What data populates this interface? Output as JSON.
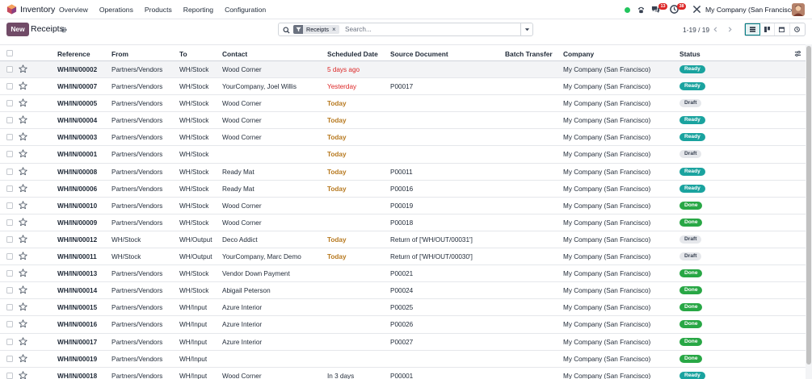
{
  "app": {
    "name": "Inventory",
    "icon": "inventory-app-icon"
  },
  "menu": [
    "Overview",
    "Operations",
    "Products",
    "Reporting",
    "Configuration"
  ],
  "systray": {
    "status_color": "#22c55e",
    "messages_count": "13",
    "activities_count": "38",
    "company": "My Company (San Francisco)"
  },
  "controls": {
    "new_label": "New",
    "breadcrumb": "Receipts",
    "facet_label": "Receipts",
    "search_placeholder": "Search...",
    "pager": "1-19 / 19"
  },
  "columns": [
    "Reference",
    "From",
    "To",
    "Contact",
    "Scheduled Date",
    "Source Document",
    "Batch Transfer",
    "Company",
    "Status"
  ],
  "rows": [
    {
      "reference": "WH/IN/00002",
      "from": "Partners/Vendors",
      "to": "WH/Stock",
      "contact": "Wood Corner",
      "date": "5 days ago",
      "date_style": "red",
      "source": "",
      "batch": "",
      "company": "My Company (San Francisco)",
      "status": "Ready"
    },
    {
      "reference": "WH/IN/00007",
      "from": "Partners/Vendors",
      "to": "WH/Stock",
      "contact": "YourCompany, Joel Willis",
      "date": "Yesterday",
      "date_style": "red",
      "source": "P00017",
      "batch": "",
      "company": "My Company (San Francisco)",
      "status": "Ready"
    },
    {
      "reference": "WH/IN/00005",
      "from": "Partners/Vendors",
      "to": "WH/Stock",
      "contact": "Wood Corner",
      "date": "Today",
      "date_style": "amber",
      "source": "",
      "batch": "",
      "company": "My Company (San Francisco)",
      "status": "Draft"
    },
    {
      "reference": "WH/IN/00004",
      "from": "Partners/Vendors",
      "to": "WH/Stock",
      "contact": "Wood Corner",
      "date": "Today",
      "date_style": "amber",
      "source": "",
      "batch": "",
      "company": "My Company (San Francisco)",
      "status": "Ready"
    },
    {
      "reference": "WH/IN/00003",
      "from": "Partners/Vendors",
      "to": "WH/Stock",
      "contact": "Wood Corner",
      "date": "Today",
      "date_style": "amber",
      "source": "",
      "batch": "",
      "company": "My Company (San Francisco)",
      "status": "Ready"
    },
    {
      "reference": "WH/IN/00001",
      "from": "Partners/Vendors",
      "to": "WH/Stock",
      "contact": "",
      "date": "Today",
      "date_style": "amber",
      "source": "",
      "batch": "",
      "company": "My Company (San Francisco)",
      "status": "Draft"
    },
    {
      "reference": "WH/IN/00008",
      "from": "Partners/Vendors",
      "to": "WH/Stock",
      "contact": "Ready Mat",
      "date": "Today",
      "date_style": "amber",
      "source": "P00011",
      "batch": "",
      "company": "My Company (San Francisco)",
      "status": "Ready"
    },
    {
      "reference": "WH/IN/00006",
      "from": "Partners/Vendors",
      "to": "WH/Stock",
      "contact": "Ready Mat",
      "date": "Today",
      "date_style": "amber",
      "source": "P00016",
      "batch": "",
      "company": "My Company (San Francisco)",
      "status": "Ready"
    },
    {
      "reference": "WH/IN/00010",
      "from": "Partners/Vendors",
      "to": "WH/Stock",
      "contact": "Wood Corner",
      "date": "",
      "date_style": "",
      "source": "P00019",
      "batch": "",
      "company": "My Company (San Francisco)",
      "status": "Done"
    },
    {
      "reference": "WH/IN/00009",
      "from": "Partners/Vendors",
      "to": "WH/Stock",
      "contact": "Wood Corner",
      "date": "",
      "date_style": "",
      "source": "P00018",
      "batch": "",
      "company": "My Company (San Francisco)",
      "status": "Done"
    },
    {
      "reference": "WH/IN/00012",
      "from": "WH/Stock",
      "to": "WH/Output",
      "contact": "Deco Addict",
      "date": "Today",
      "date_style": "amber",
      "source": "Return of ['WH/OUT/00031']",
      "batch": "",
      "company": "My Company (San Francisco)",
      "status": "Draft"
    },
    {
      "reference": "WH/IN/00011",
      "from": "WH/Stock",
      "to": "WH/Output",
      "contact": "YourCompany, Marc Demo",
      "date": "Today",
      "date_style": "amber",
      "source": "Return of ['WH/OUT/00030']",
      "batch": "",
      "company": "My Company (San Francisco)",
      "status": "Draft"
    },
    {
      "reference": "WH/IN/00013",
      "from": "Partners/Vendors",
      "to": "WH/Stock",
      "contact": "Vendor Down Payment",
      "date": "",
      "date_style": "",
      "source": "P00021",
      "batch": "",
      "company": "My Company (San Francisco)",
      "status": "Done"
    },
    {
      "reference": "WH/IN/00014",
      "from": "Partners/Vendors",
      "to": "WH/Stock",
      "contact": "Abigail Peterson",
      "date": "",
      "date_style": "",
      "source": "P00024",
      "batch": "",
      "company": "My Company (San Francisco)",
      "status": "Done"
    },
    {
      "reference": "WH/IN/00015",
      "from": "Partners/Vendors",
      "to": "WH/Input",
      "contact": "Azure Interior",
      "date": "",
      "date_style": "",
      "source": "P00025",
      "batch": "",
      "company": "My Company (San Francisco)",
      "status": "Done"
    },
    {
      "reference": "WH/IN/00016",
      "from": "Partners/Vendors",
      "to": "WH/Input",
      "contact": "Azure Interior",
      "date": "",
      "date_style": "",
      "source": "P00026",
      "batch": "",
      "company": "My Company (San Francisco)",
      "status": "Done"
    },
    {
      "reference": "WH/IN/00017",
      "from": "Partners/Vendors",
      "to": "WH/Input",
      "contact": "Azure Interior",
      "date": "",
      "date_style": "",
      "source": "P00027",
      "batch": "",
      "company": "My Company (San Francisco)",
      "status": "Done"
    },
    {
      "reference": "WH/IN/00019",
      "from": "Partners/Vendors",
      "to": "WH/Input",
      "contact": "",
      "date": "",
      "date_style": "",
      "source": "",
      "batch": "",
      "company": "My Company (San Francisco)",
      "status": "Done"
    },
    {
      "reference": "WH/IN/00018",
      "from": "Partners/Vendors",
      "to": "WH/Input",
      "contact": "Wood Corner",
      "date": "In 3 days",
      "date_style": "",
      "source": "P00001",
      "batch": "",
      "company": "My Company (San Francisco)",
      "status": "Ready"
    }
  ],
  "colors": {
    "brand": "#714b67",
    "ready": "#1aa39f",
    "done": "#28a745",
    "draft": "#e5e7eb",
    "overdue": "#dc2626",
    "today": "#b7791f"
  }
}
